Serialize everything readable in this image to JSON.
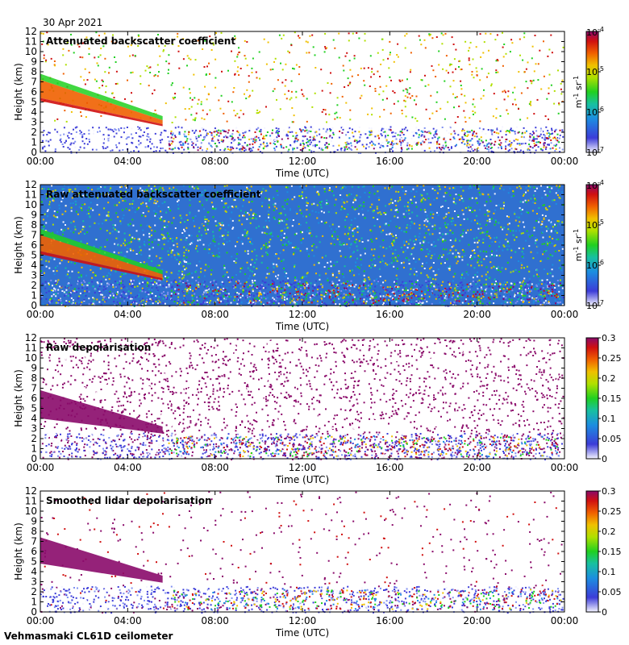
{
  "date_label": "30 Apr 2021",
  "footer_label": "Vehmasmaki CL61D ceilometer",
  "chart_data": [
    {
      "type": "heatmap",
      "title": "Attenuated backscatter coefficient",
      "xlabel": "Time (UTC)",
      "ylabel": "Height (km)",
      "x_ticks": [
        "00:00",
        "04:00",
        "08:00",
        "12:00",
        "16:00",
        "20:00",
        "00:00"
      ],
      "xlim_hours": [
        0,
        24
      ],
      "ylim_km": [
        0,
        12
      ],
      "y_ticks": [
        "0",
        "1",
        "2",
        "3",
        "4",
        "5",
        "6",
        "7",
        "8",
        "9",
        "10",
        "11",
        "12"
      ],
      "colorbar": {
        "scale": "log",
        "range": [
          1e-07,
          0.0001
        ],
        "tick_labels": [
          {
            "m": "10",
            "e": "-7"
          },
          {
            "m": "10",
            "e": "-6"
          },
          {
            "m": "10",
            "e": "-5"
          },
          {
            "m": "10",
            "e": "-4"
          }
        ],
        "unit": {
          "m": "m",
          "e1": "-1",
          "s": "sr",
          "e2": "-1"
        }
      },
      "noise": "sparse",
      "cloud_layer": {
        "from_h": 0,
        "to_h": 5.6,
        "top_km": [
          7.2,
          3.2
        ],
        "bottom_km": [
          5.4,
          2.8
        ]
      }
    },
    {
      "type": "heatmap",
      "title": "Raw attenuated backscatter coefficient",
      "xlabel": "Time (UTC)",
      "ylabel": "Height (km)",
      "x_ticks": [
        "00:00",
        "04:00",
        "08:00",
        "12:00",
        "16:00",
        "20:00",
        "00:00"
      ],
      "xlim_hours": [
        0,
        24
      ],
      "ylim_km": [
        0,
        12
      ],
      "y_ticks": [
        "0",
        "1",
        "2",
        "3",
        "4",
        "5",
        "6",
        "7",
        "8",
        "9",
        "10",
        "11",
        "12"
      ],
      "colorbar": {
        "scale": "log",
        "range": [
          1e-07,
          0.0001
        ],
        "tick_labels": [
          {
            "m": "10",
            "e": "-7"
          },
          {
            "m": "10",
            "e": "-6"
          },
          {
            "m": "10",
            "e": "-5"
          },
          {
            "m": "10",
            "e": "-4"
          }
        ],
        "unit": {
          "m": "m",
          "e1": "-1",
          "s": "sr",
          "e2": "-1"
        }
      },
      "noise": "dense",
      "cloud_layer": {
        "from_h": 0,
        "to_h": 5.6,
        "top_km": [
          7.0,
          3.1
        ],
        "bottom_km": [
          5.4,
          2.7
        ]
      }
    },
    {
      "type": "heatmap",
      "title": "Raw depolarisation",
      "xlabel": "Time (UTC)",
      "ylabel": "Height (km)",
      "x_ticks": [
        "00:00",
        "04:00",
        "08:00",
        "12:00",
        "16:00",
        "20:00",
        "00:00"
      ],
      "xlim_hours": [
        0,
        24
      ],
      "ylim_km": [
        0,
        12
      ],
      "y_ticks": [
        "0",
        "1",
        "2",
        "3",
        "4",
        "5",
        "6",
        "7",
        "8",
        "9",
        "10",
        "11",
        "12"
      ],
      "colorbar": {
        "scale": "linear",
        "range": [
          0,
          0.3
        ],
        "tick_labels": [
          "0",
          "0.05",
          "0.1",
          "0.15",
          "0.2",
          "0.25",
          "0.3"
        ]
      },
      "noise": "purple",
      "cloud_layer": {
        "from_h": 0,
        "to_h": 5.6,
        "top_km": [
          6.8,
          3.2
        ],
        "bottom_km": [
          4.0,
          2.5
        ]
      }
    },
    {
      "type": "heatmap",
      "title": "Smoothed lidar depolarisation",
      "xlabel": "Time (UTC)",
      "ylabel": "Height (km)",
      "x_ticks": [
        "00:00",
        "04:00",
        "08:00",
        "12:00",
        "16:00",
        "20:00",
        "00:00"
      ],
      "xlim_hours": [
        0,
        24
      ],
      "ylim_km": [
        0,
        12
      ],
      "y_ticks": [
        "0",
        "1",
        "2",
        "3",
        "4",
        "5",
        "6",
        "7",
        "8",
        "9",
        "10",
        "11",
        "12"
      ],
      "colorbar": {
        "scale": "linear",
        "range": [
          0,
          0.3
        ],
        "tick_labels": [
          "0",
          "0.05",
          "0.1",
          "0.15",
          "0.2",
          "0.25",
          "0.3"
        ]
      },
      "noise": "sparse_purple",
      "cloud_layer": {
        "from_h": 0,
        "to_h": 5.6,
        "top_km": [
          7.4,
          3.6
        ],
        "bottom_km": [
          4.8,
          2.9
        ]
      }
    }
  ],
  "colors": {
    "colormap": [
      "#f4f4ff",
      "#3c3cd8",
      "#1c8ee0",
      "#18c0a0",
      "#20d020",
      "#b0e000",
      "#f0c000",
      "#f06000",
      "#d01010",
      "#8a0a6a"
    ]
  }
}
